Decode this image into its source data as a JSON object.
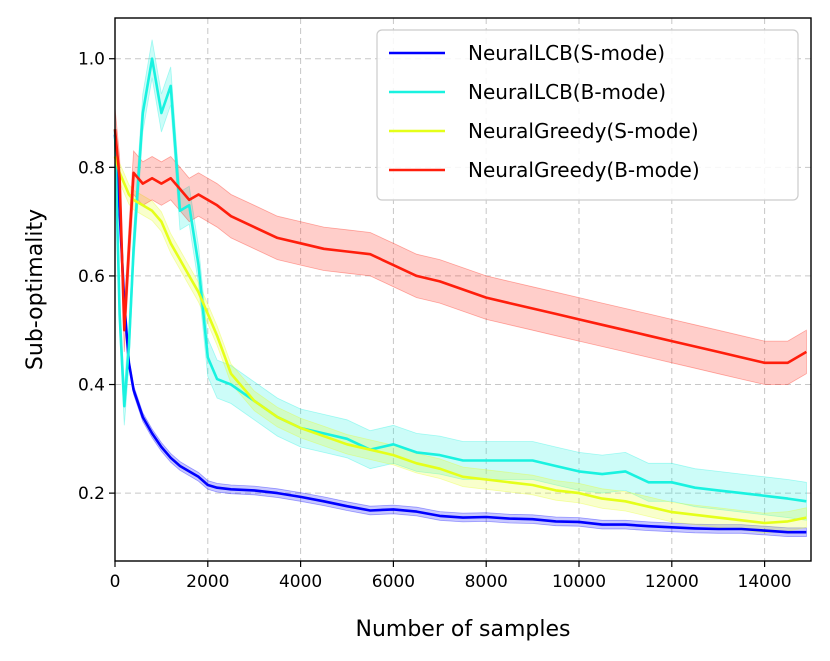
{
  "chart_data": {
    "type": "line",
    "title": "",
    "xlabel": "Number of samples",
    "ylabel": "Sub-optimality",
    "xlim": [
      0,
      15000
    ],
    "ylim": [
      0.075,
      1.075
    ],
    "xticks": [
      0,
      2000,
      4000,
      6000,
      8000,
      10000,
      12000,
      14000
    ],
    "yticks": [
      0.2,
      0.4,
      0.6,
      0.8,
      1.0
    ],
    "xtick_labels": [
      "0",
      "2000",
      "4000",
      "6000",
      "8000",
      "10000",
      "12000",
      "14000"
    ],
    "ytick_labels": [
      "0.2",
      "0.4",
      "0.6",
      "0.8",
      "1.0"
    ],
    "grid": true,
    "legend_position": "top-right",
    "x": [
      0,
      100,
      200,
      300,
      400,
      600,
      800,
      1000,
      1200,
      1400,
      1600,
      1800,
      2000,
      2200,
      2500,
      3000,
      3500,
      4000,
      4500,
      5000,
      5500,
      6000,
      6500,
      7000,
      7500,
      8000,
      8500,
      9000,
      9500,
      10000,
      10500,
      11000,
      11500,
      12000,
      12500,
      13000,
      13500,
      14000,
      14500,
      14900
    ],
    "series": [
      {
        "name": "NeuralLCB(S-mode)",
        "color": "#0000ff",
        "values": [
          0.86,
          0.72,
          0.55,
          0.44,
          0.39,
          0.34,
          0.31,
          0.285,
          0.265,
          0.25,
          0.24,
          0.23,
          0.215,
          0.21,
          0.207,
          0.205,
          0.2,
          0.193,
          0.185,
          0.176,
          0.168,
          0.17,
          0.166,
          0.158,
          0.155,
          0.156,
          0.153,
          0.152,
          0.148,
          0.147,
          0.142,
          0.142,
          0.139,
          0.137,
          0.135,
          0.134,
          0.134,
          0.131,
          0.128,
          0.128
        ],
        "band": 0.008
      },
      {
        "name": "NeuralLCB(B-mode)",
        "color": "#19f2e0",
        "values": [
          0.87,
          0.53,
          0.36,
          0.47,
          0.65,
          0.9,
          1.0,
          0.9,
          0.95,
          0.72,
          0.73,
          0.62,
          0.45,
          0.41,
          0.4,
          0.37,
          0.34,
          0.32,
          0.31,
          0.3,
          0.28,
          0.29,
          0.275,
          0.27,
          0.26,
          0.26,
          0.26,
          0.26,
          0.25,
          0.24,
          0.235,
          0.24,
          0.22,
          0.22,
          0.21,
          0.205,
          0.2,
          0.195,
          0.19,
          0.185
        ],
        "band": 0.035
      },
      {
        "name": "NeuralGreedy(S-mode)",
        "color": "#e5ff19",
        "values": [
          0.82,
          0.79,
          0.77,
          0.75,
          0.74,
          0.73,
          0.72,
          0.7,
          0.66,
          0.63,
          0.6,
          0.57,
          0.53,
          0.49,
          0.42,
          0.37,
          0.34,
          0.32,
          0.305,
          0.29,
          0.28,
          0.27,
          0.255,
          0.245,
          0.23,
          0.225,
          0.22,
          0.215,
          0.205,
          0.2,
          0.19,
          0.185,
          0.175,
          0.165,
          0.16,
          0.155,
          0.15,
          0.145,
          0.148,
          0.155
        ],
        "band": 0.018
      },
      {
        "name": "NeuralGreedy(B-mode)",
        "color": "#ff1e0c",
        "values": [
          0.87,
          0.78,
          0.5,
          0.65,
          0.79,
          0.77,
          0.78,
          0.77,
          0.78,
          0.76,
          0.74,
          0.75,
          0.74,
          0.73,
          0.71,
          0.69,
          0.67,
          0.66,
          0.65,
          0.645,
          0.64,
          0.62,
          0.6,
          0.59,
          0.575,
          0.56,
          0.55,
          0.54,
          0.53,
          0.52,
          0.51,
          0.5,
          0.49,
          0.48,
          0.47,
          0.46,
          0.45,
          0.44,
          0.44,
          0.46
        ],
        "band": 0.04
      }
    ]
  }
}
